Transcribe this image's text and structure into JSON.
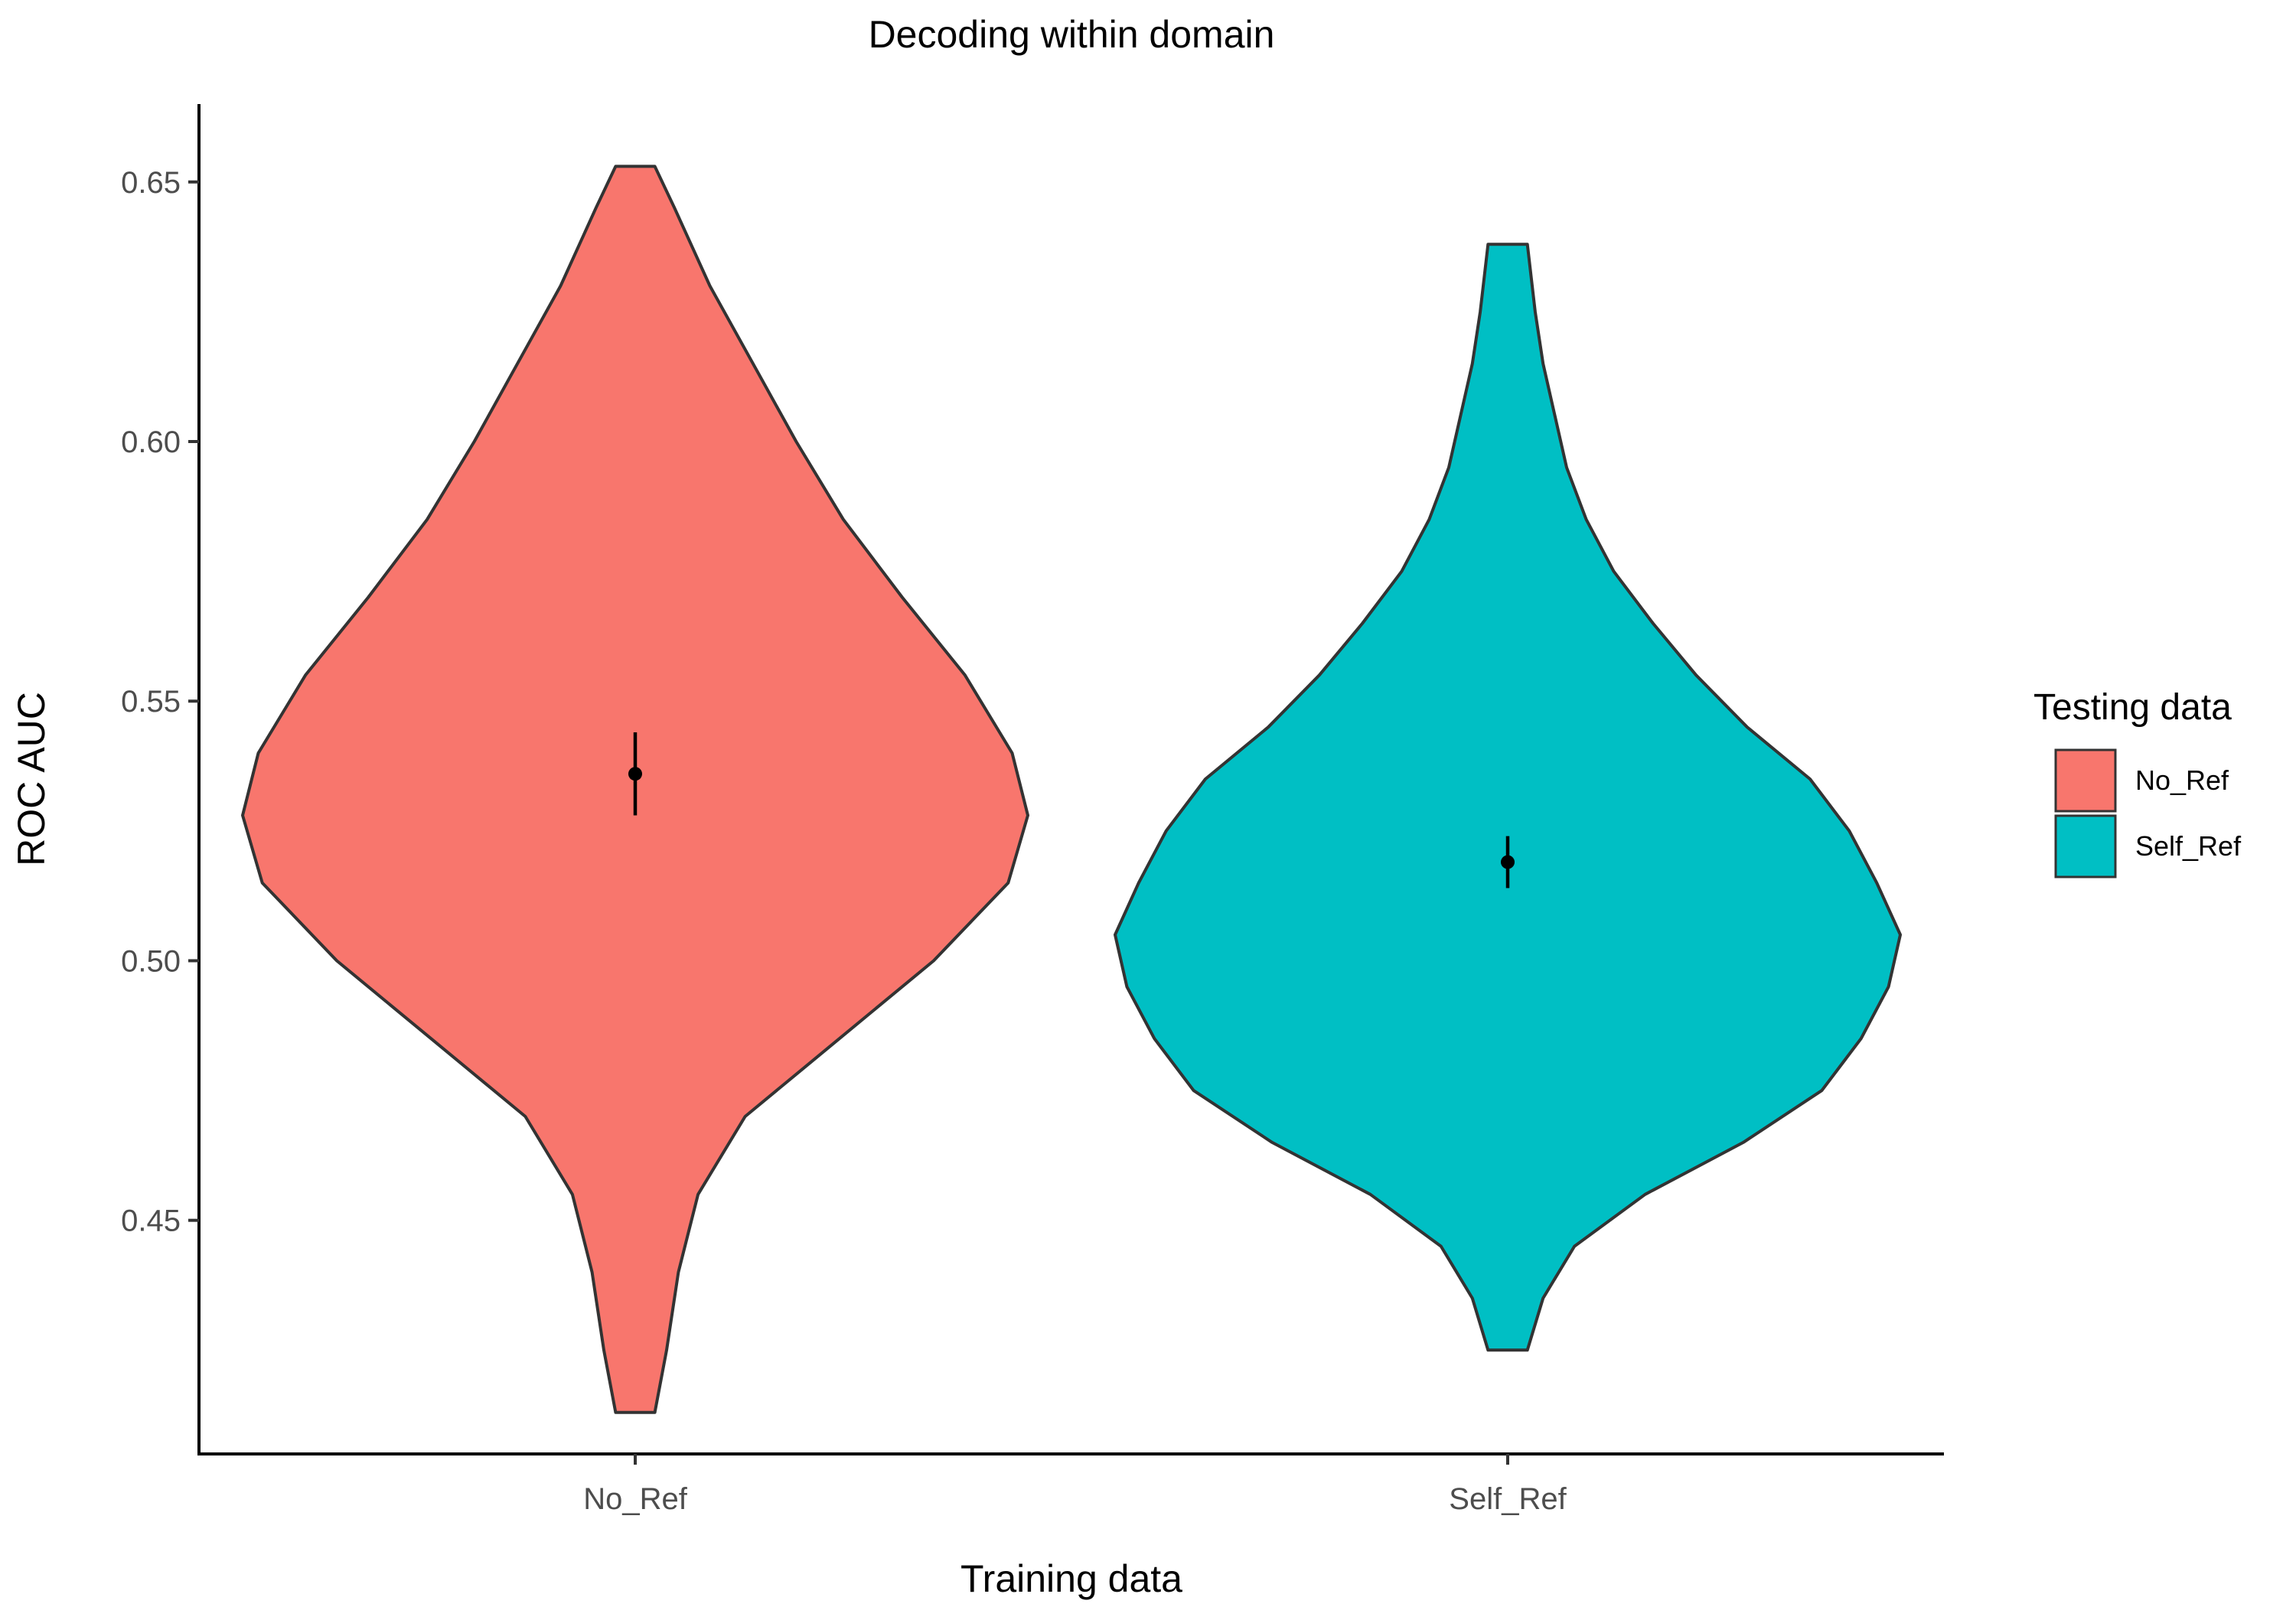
{
  "chart_data": {
    "type": "violin",
    "title": "Decoding within domain",
    "xlabel": "Training data",
    "ylabel": "ROC AUC",
    "categories": [
      "No_Ref",
      "Self_Ref"
    ],
    "ylim": [
      0.405,
      0.665
    ],
    "yticks": [
      0.45,
      0.5,
      0.55,
      0.6,
      0.65
    ],
    "ytick_labels": [
      "0.45",
      "0.50",
      "0.55",
      "0.60",
      "0.65"
    ],
    "legend": {
      "title": "Testing data",
      "position": "right",
      "entries": [
        {
          "label": "No_Ref",
          "color": "#F8766D"
        },
        {
          "label": "Self_Ref",
          "color": "#00BFC4"
        }
      ]
    },
    "series": [
      {
        "name": "No_Ref",
        "color": "#F8766D",
        "min": 0.413,
        "max": 0.653,
        "mean": 0.536,
        "ci_low": 0.528,
        "ci_high": 0.544,
        "density_profile": [
          [
            0.413,
            0.05
          ],
          [
            0.425,
            0.08
          ],
          [
            0.44,
            0.11
          ],
          [
            0.455,
            0.16
          ],
          [
            0.47,
            0.28
          ],
          [
            0.485,
            0.52
          ],
          [
            0.5,
            0.76
          ],
          [
            0.515,
            0.95
          ],
          [
            0.528,
            1.0
          ],
          [
            0.54,
            0.96
          ],
          [
            0.555,
            0.84
          ],
          [
            0.57,
            0.68
          ],
          [
            0.585,
            0.53
          ],
          [
            0.6,
            0.41
          ],
          [
            0.615,
            0.3
          ],
          [
            0.63,
            0.19
          ],
          [
            0.645,
            0.1
          ],
          [
            0.653,
            0.05
          ]
        ]
      },
      {
        "name": "Self_Ref",
        "color": "#00BFC4",
        "min": 0.425,
        "max": 0.638,
        "mean": 0.519,
        "ci_low": 0.514,
        "ci_high": 0.524,
        "density_profile": [
          [
            0.425,
            0.05
          ],
          [
            0.435,
            0.09
          ],
          [
            0.445,
            0.17
          ],
          [
            0.455,
            0.35
          ],
          [
            0.465,
            0.6
          ],
          [
            0.475,
            0.8
          ],
          [
            0.485,
            0.9
          ],
          [
            0.495,
            0.97
          ],
          [
            0.505,
            1.0
          ],
          [
            0.515,
            0.94
          ],
          [
            0.525,
            0.87
          ],
          [
            0.535,
            0.77
          ],
          [
            0.545,
            0.61
          ],
          [
            0.555,
            0.48
          ],
          [
            0.565,
            0.37
          ],
          [
            0.575,
            0.27
          ],
          [
            0.585,
            0.2
          ],
          [
            0.595,
            0.15
          ],
          [
            0.605,
            0.12
          ],
          [
            0.615,
            0.09
          ],
          [
            0.625,
            0.07
          ],
          [
            0.638,
            0.05
          ]
        ]
      }
    ]
  }
}
